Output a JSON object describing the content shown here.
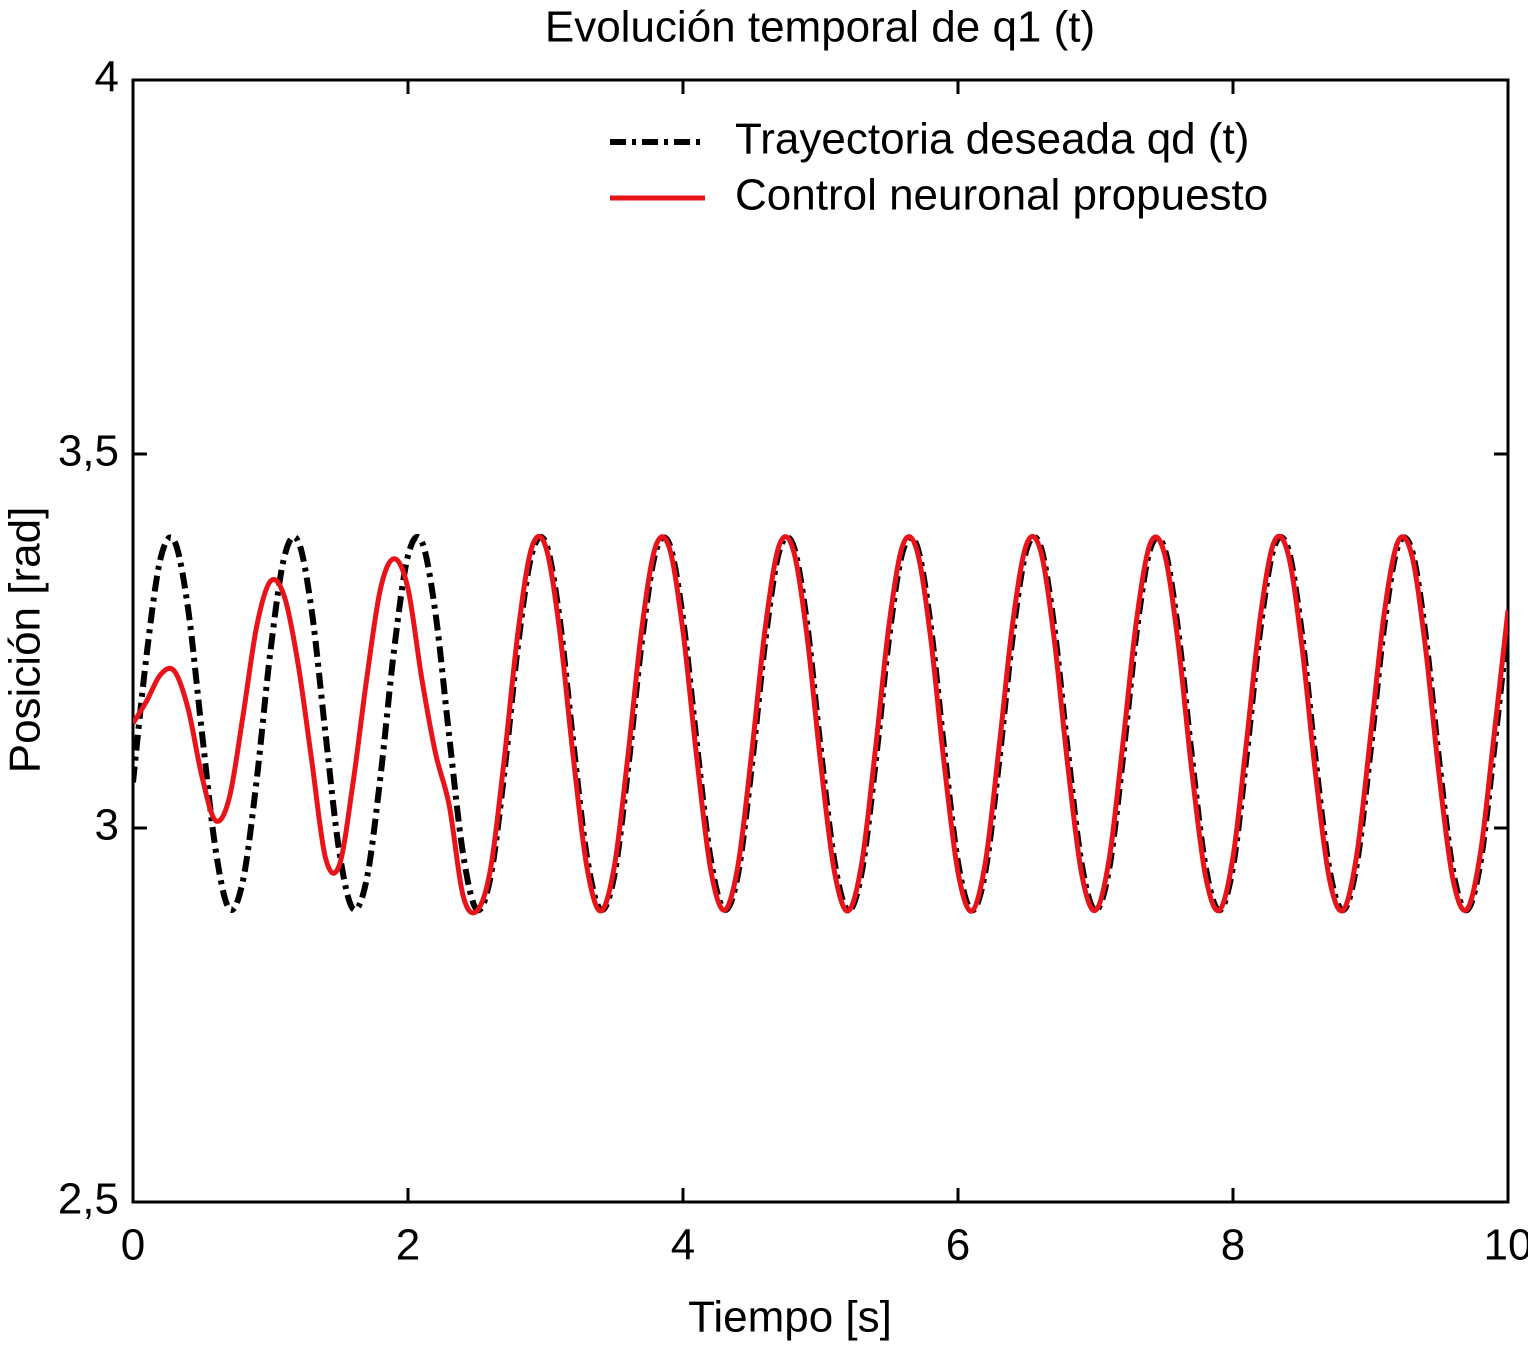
{
  "chart_data": {
    "type": "line",
    "title": "Evolución temporal de q1 (t)",
    "x_label": "Tiempo [s]",
    "y_label": "Posición [rad]",
    "x": [
      0,
      0.1,
      0.2,
      0.3,
      0.4,
      0.5,
      0.6,
      0.7,
      0.8,
      0.9,
      1,
      1.1,
      1.2,
      1.3,
      1.4,
      1.5,
      1.6,
      1.7,
      1.8,
      1.9,
      2,
      2.1,
      2.2,
      2.3,
      2.4,
      2.5,
      2.6,
      2.7,
      2.8,
      2.9,
      3,
      3.1,
      3.2,
      3.3,
      3.4,
      3.5,
      3.6,
      3.7,
      3.8,
      3.9,
      4,
      4.1,
      4.2,
      4.3,
      4.4,
      4.5,
      4.6,
      4.7,
      4.8,
      4.9,
      5,
      5.1,
      5.2,
      5.3,
      5.4,
      5.5,
      5.6,
      5.7,
      5.8,
      5.9,
      6,
      6.1,
      6.2,
      6.3,
      6.4,
      6.5,
      6.6,
      6.7,
      6.8,
      6.9,
      7,
      7.1,
      7.2,
      7.3,
      7.4,
      7.5,
      7.6,
      7.7,
      7.8,
      7.9,
      8,
      8.1,
      8.2,
      8.3,
      8.4,
      8.5,
      8.6,
      8.7,
      8.8,
      8.9,
      9,
      9.1,
      9.2,
      9.3,
      9.4,
      9.5,
      9.6,
      9.7,
      9.8,
      9.9,
      10
    ],
    "series": [
      {
        "name": "Trayectoria deseada qd (t)",
        "color": "#000000",
        "dash": "dashdot",
        "values": [
          3.061,
          3.233,
          3.36,
          3.384,
          3.294,
          3.13,
          2.972,
          2.892,
          2.93,
          3.065,
          3.237,
          3.362,
          3.384,
          3.29,
          3.126,
          2.969,
          2.892,
          2.932,
          3.069,
          3.24,
          3.364,
          3.383,
          3.287,
          3.122,
          2.966,
          2.891,
          2.934,
          3.073,
          3.244,
          3.366,
          3.382,
          3.284,
          3.118,
          2.963,
          2.891,
          2.936,
          3.078,
          3.248,
          3.368,
          3.38,
          3.28,
          3.114,
          2.96,
          2.891,
          2.938,
          3.082,
          3.252,
          3.37,
          3.379,
          3.277,
          3.109,
          2.957,
          2.89,
          2.941,
          3.086,
          3.256,
          3.371,
          3.378,
          3.273,
          3.105,
          2.954,
          2.89,
          2.943,
          3.09,
          3.259,
          3.373,
          3.377,
          3.269,
          3.101,
          2.951,
          2.89,
          2.946,
          3.094,
          3.263,
          3.374,
          3.375,
          3.266,
          3.097,
          2.949,
          2.89,
          2.948,
          3.098,
          3.267,
          3.376,
          3.374,
          3.262,
          3.093,
          2.946,
          2.89,
          2.951,
          3.102,
          3.27,
          3.377,
          3.372,
          3.259,
          3.089,
          2.943,
          2.89,
          2.954,
          3.106,
          3.274
        ]
      },
      {
        "name": "Control neuronal propuesto",
        "color": "#e8141a",
        "dash": "solid",
        "values": [
          3.14,
          3.17,
          3.205,
          3.21,
          3.16,
          3.07,
          3.01,
          3.04,
          3.15,
          3.27,
          3.33,
          3.31,
          3.22,
          3.09,
          2.96,
          2.95,
          3.06,
          3.2,
          3.32,
          3.36,
          3.32,
          3.2,
          3.1,
          3.03,
          2.91,
          2.889,
          2.945,
          3.092,
          3.262,
          3.375,
          3.377,
          3.268,
          3.098,
          2.949,
          2.889,
          2.948,
          3.097,
          3.266,
          3.376,
          3.375,
          3.263,
          3.094,
          2.946,
          2.89,
          2.95,
          3.101,
          3.27,
          3.378,
          3.373,
          3.26,
          3.089,
          2.943,
          2.889,
          2.953,
          3.106,
          3.274,
          3.379,
          3.372,
          3.256,
          3.085,
          2.941,
          2.889,
          2.955,
          3.11,
          3.277,
          3.38,
          3.371,
          3.252,
          3.081,
          2.938,
          2.89,
          2.959,
          3.114,
          3.28,
          3.381,
          3.368,
          3.249,
          3.077,
          2.936,
          2.89,
          2.961,
          3.118,
          3.284,
          3.383,
          3.367,
          3.245,
          3.073,
          2.933,
          2.89,
          2.964,
          3.122,
          3.287,
          3.383,
          3.365,
          3.241,
          3.069,
          2.931,
          2.891,
          2.967,
          3.126,
          3.291
        ]
      }
    ],
    "xlim": [
      0,
      10
    ],
    "xticks": [
      0,
      2,
      4,
      6,
      8,
      10
    ],
    "ylim": [
      2.5,
      4
    ],
    "yticks": [
      {
        "value": 2.5,
        "label": "2,5"
      },
      3,
      {
        "value": 3.5,
        "label": "3,5"
      },
      4
    ],
    "grid": false,
    "legend": "upper right"
  }
}
